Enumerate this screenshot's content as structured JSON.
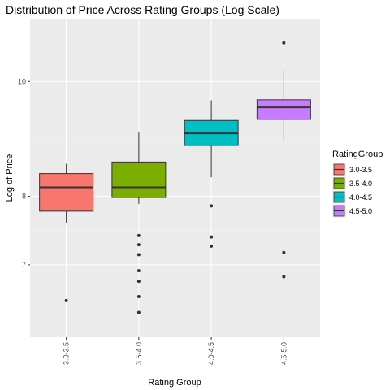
{
  "chart_data": {
    "type": "boxplot",
    "title": "Distribution of Price Across Rating Groups (Log Scale)",
    "xlabel": "Rating Group",
    "ylabel": "Log of Price",
    "y_scale": "log",
    "ylim": [
      6.08,
      11.3
    ],
    "y_ticks": [
      7,
      8,
      10
    ],
    "y_tick_labels": [
      "7",
      "8",
      "10"
    ],
    "grid": true,
    "legend": {
      "title": "RatingGroup",
      "position": "right"
    },
    "categories": [
      "3.0-3.5",
      "3.5-4.0",
      "4.0-4.5",
      "4.5-5.0"
    ],
    "colors": [
      "#F8766D",
      "#7CAE00",
      "#00BFC4",
      "#C77CFF"
    ],
    "boxes": [
      {
        "whisker_low": 7.6,
        "q1": 7.77,
        "median": 8.14,
        "q3": 8.36,
        "whisker_high": 8.52,
        "outliers": [
          6.53
        ]
      },
      {
        "whisker_low": 7.88,
        "q1": 7.98,
        "median": 8.14,
        "q3": 8.55,
        "whisker_high": 9.07,
        "outliers": [
          6.38,
          6.58,
          6.78,
          6.92,
          7.14,
          7.28,
          7.41
        ]
      },
      {
        "whisker_low": 8.3,
        "q1": 8.83,
        "median": 9.04,
        "q3": 9.27,
        "whisker_high": 9.64,
        "outliers": [
          7.26,
          7.39,
          7.85
        ]
      },
      {
        "whisker_low": 8.9,
        "q1": 9.29,
        "median": 9.51,
        "q3": 9.65,
        "whisker_high": 10.22,
        "outliers": [
          6.84,
          7.17,
          10.78
        ]
      }
    ]
  }
}
